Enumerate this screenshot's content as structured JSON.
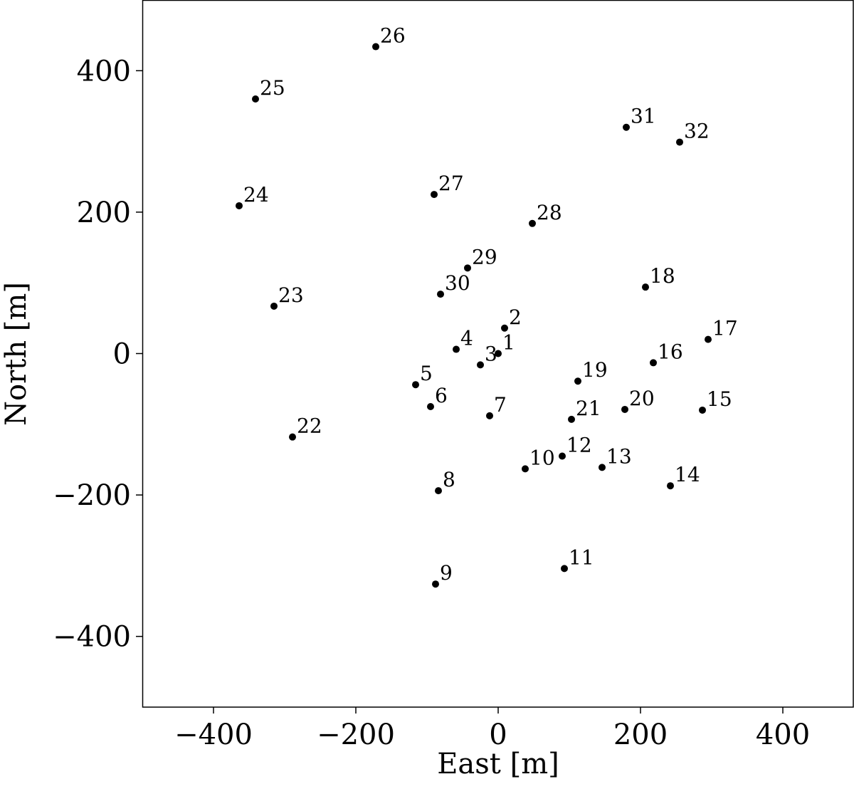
{
  "chart_data": {
    "type": "scatter",
    "x_label": "East [m]",
    "y_label": "North [m]",
    "x": [
      0,
      9,
      -25,
      -59,
      -116,
      -95,
      -12,
      -84,
      -88,
      38,
      93,
      90,
      146,
      242,
      287,
      218,
      295,
      207,
      112,
      178,
      103,
      -289,
      -315,
      -364,
      -341,
      -172,
      -90,
      48,
      -43,
      -81,
      180,
      255
    ],
    "values": [
      0,
      36,
      -16,
      6,
      -44,
      -75,
      -88,
      -194,
      -326,
      -163,
      -304,
      -145,
      -161,
      -187,
      -80,
      -13,
      20,
      94,
      -39,
      -79,
      -93,
      -118,
      67,
      209,
      360,
      434,
      225,
      184,
      121,
      84,
      320,
      299
    ],
    "point_labels": [
      "1",
      "2",
      "3",
      "4",
      "5",
      "6",
      "7",
      "8",
      "9",
      "10",
      "11",
      "12",
      "13",
      "14",
      "15",
      "16",
      "17",
      "18",
      "19",
      "20",
      "21",
      "22",
      "23",
      "24",
      "25",
      "26",
      "27",
      "28",
      "29",
      "30",
      "31",
      "32"
    ],
    "color": "#000000",
    "xlim": [
      -500,
      500
    ],
    "ylim": [
      -500,
      500
    ],
    "xticks": [
      {
        "value": -400,
        "label": "−400"
      },
      {
        "value": -200,
        "label": "−200"
      },
      0,
      200,
      400
    ],
    "yticks": [
      {
        "value": -400,
        "label": "−400"
      },
      {
        "value": -200,
        "label": "−200"
      },
      0,
      200,
      400
    ]
  }
}
